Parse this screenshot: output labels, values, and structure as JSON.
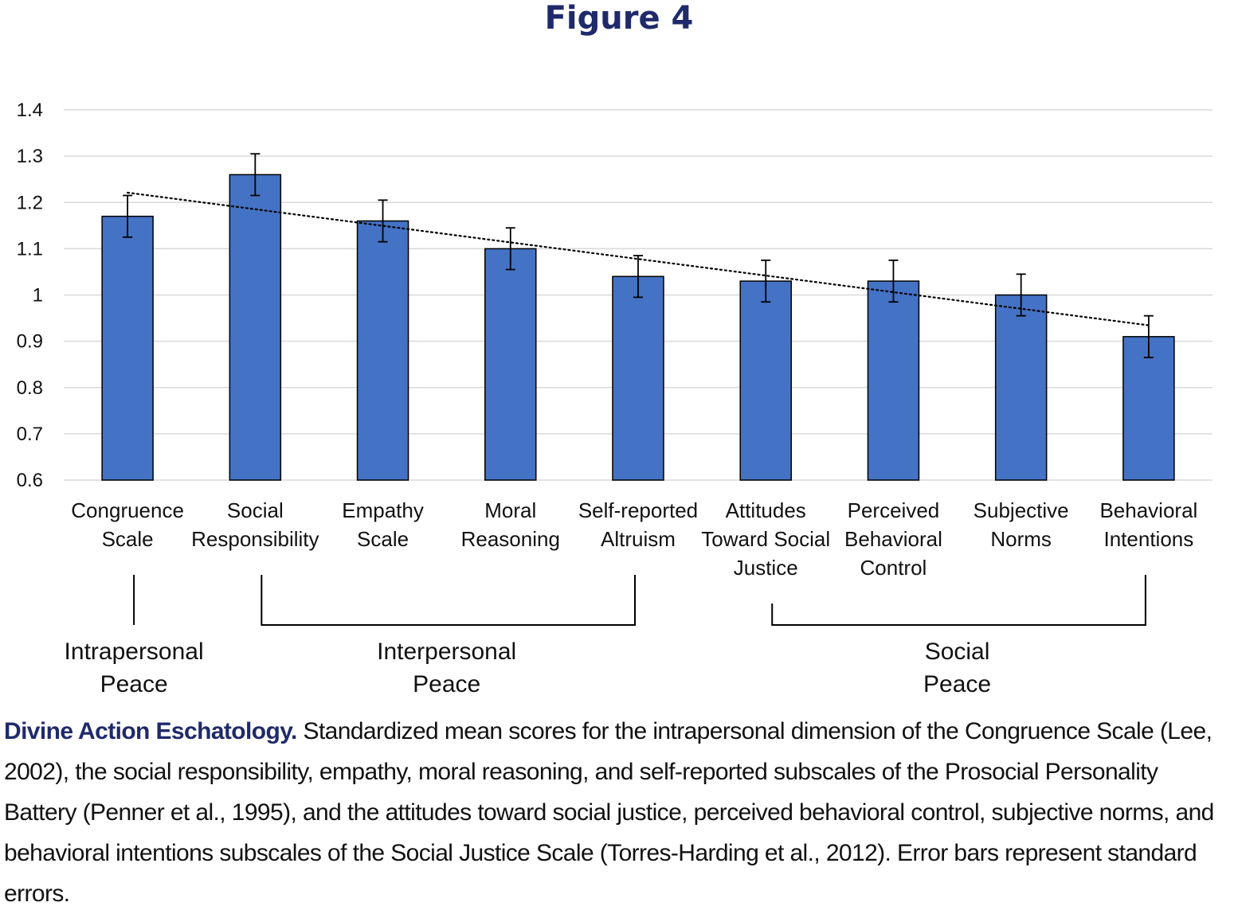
{
  "figure_label": "Figure 4",
  "chart_data": {
    "type": "bar",
    "categories": [
      [
        "Congruence",
        "Scale"
      ],
      [
        "Social",
        "Responsibility"
      ],
      [
        "Empathy",
        "Scale"
      ],
      [
        "Moral",
        "Reasoning"
      ],
      [
        "Self-reported",
        "Altruism"
      ],
      [
        "Attitudes",
        "Toward Social",
        "Justice"
      ],
      [
        "Perceived",
        "Behavioral",
        "Control"
      ],
      [
        "Subjective",
        "Norms"
      ],
      [
        "Behavioral",
        "Intentions"
      ]
    ],
    "values": [
      1.17,
      1.26,
      1.16,
      1.1,
      1.04,
      1.03,
      1.03,
      1.0,
      0.91
    ],
    "errors": [
      0.045,
      0.045,
      0.045,
      0.045,
      0.045,
      0.045,
      0.045,
      0.045,
      0.045
    ],
    "trendline": {
      "type": "linear",
      "style": "dotted"
    },
    "ylim": [
      0.6,
      1.4
    ],
    "yticks": [
      "0.6",
      "0.7",
      "0.8",
      "0.9",
      "1",
      "1.1",
      "1.2",
      "1.3",
      "1.4"
    ],
    "grid": true,
    "bar_color": "#4472c4",
    "groups": [
      {
        "label": [
          "Intrapersonal",
          "Peace"
        ],
        "start": 0,
        "end": 0
      },
      {
        "label": [
          "Interpersonal",
          "Peace"
        ],
        "start": 1,
        "end": 4
      },
      {
        "label": [
          "Social",
          "Peace"
        ],
        "start": 5,
        "end": 8
      }
    ]
  },
  "caption": {
    "lead": "Divine Action Eschatology.",
    "text": " Standardized mean scores for the intrapersonal dimension of the Congruence Scale (Lee, 2002), the social responsibility, empathy, moral reasoning, and self-reported subscales of the Prosocial Personality Battery (Penner et al., 1995), and the attitudes toward social justice, perceived behavioral control, subjective norms, and behavioral intentions subscales of the Social Justice Scale (Torres-Harding et al., 2012). Error bars represent standard errors."
  },
  "colors": {
    "title": "#1f2a6b",
    "bars": "#4472c4",
    "grid": "#d9d9d9"
  }
}
